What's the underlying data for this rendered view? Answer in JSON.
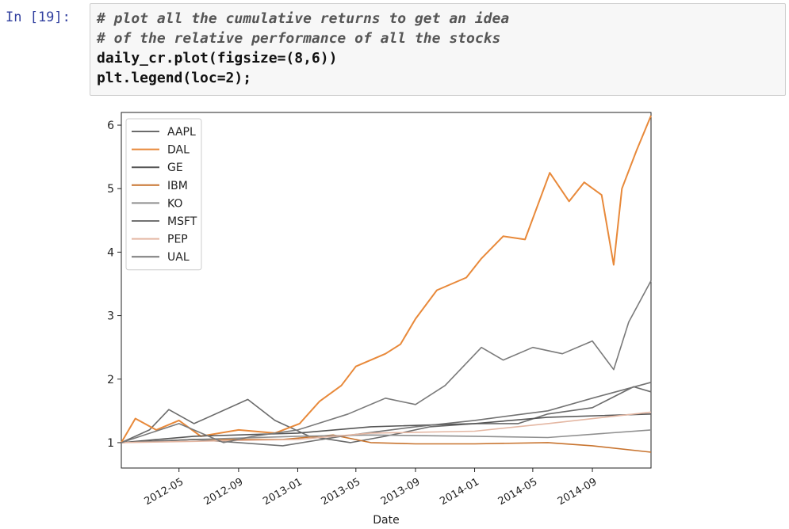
{
  "cell": {
    "prompt": "In [19]:",
    "code_lines": [
      {
        "text": "# plot all the cumulative returns to get an idea",
        "kind": "comment"
      },
      {
        "text": "# of the relative performance of all the stocks",
        "kind": "comment"
      },
      {
        "text": "daily_cr.plot(figsize=(8,6))",
        "kind": "code"
      },
      {
        "text": "plt.legend(loc=2);",
        "kind": "code"
      }
    ]
  },
  "chart_data": {
    "type": "line",
    "title": "",
    "xlabel": "Date",
    "ylabel": "",
    "x_range": [
      "2012-01-03",
      "2014-12-31"
    ],
    "ylim": [
      0.6,
      6.2
    ],
    "x_ticks": [
      "2012-05",
      "2012-09",
      "2013-01",
      "2013-05",
      "2013-09",
      "2014-01",
      "2014-05",
      "2014-09"
    ],
    "y_ticks": [
      1,
      2,
      3,
      4,
      5,
      6
    ],
    "grid": false,
    "legend_position": "top-left",
    "series": [
      {
        "name": "AAPL",
        "color": "#6b6b6b",
        "points": [
          [
            "2012-01-03",
            1.0
          ],
          [
            "2012-03-01",
            1.2
          ],
          [
            "2012-04-10",
            1.52
          ],
          [
            "2012-06-01",
            1.3
          ],
          [
            "2012-09-20",
            1.68
          ],
          [
            "2012-11-15",
            1.35
          ],
          [
            "2013-01-25",
            1.1
          ],
          [
            "2013-04-20",
            1.0
          ],
          [
            "2013-07-01",
            1.1
          ],
          [
            "2013-10-01",
            1.25
          ],
          [
            "2014-01-02",
            1.3
          ],
          [
            "2014-04-01",
            1.3
          ],
          [
            "2014-06-01",
            1.45
          ],
          [
            "2014-09-01",
            1.55
          ],
          [
            "2014-11-25",
            1.88
          ],
          [
            "2014-12-31",
            1.8
          ]
        ]
      },
      {
        "name": "DAL",
        "color": "#e8893a",
        "points": [
          [
            "2012-01-03",
            1.0
          ],
          [
            "2012-02-01",
            1.38
          ],
          [
            "2012-03-15",
            1.2
          ],
          [
            "2012-05-01",
            1.35
          ],
          [
            "2012-06-15",
            1.1
          ],
          [
            "2012-09-01",
            1.2
          ],
          [
            "2012-11-15",
            1.15
          ],
          [
            "2013-01-05",
            1.3
          ],
          [
            "2013-02-15",
            1.65
          ],
          [
            "2013-04-01",
            1.9
          ],
          [
            "2013-05-01",
            2.2
          ],
          [
            "2013-07-01",
            2.4
          ],
          [
            "2013-08-01",
            2.55
          ],
          [
            "2013-09-01",
            2.95
          ],
          [
            "2013-10-15",
            3.4
          ],
          [
            "2013-12-15",
            3.6
          ],
          [
            "2014-01-15",
            3.9
          ],
          [
            "2014-03-01",
            4.25
          ],
          [
            "2014-04-15",
            4.2
          ],
          [
            "2014-06-05",
            5.25
          ],
          [
            "2014-07-15",
            4.8
          ],
          [
            "2014-08-15",
            5.1
          ],
          [
            "2014-09-20",
            4.9
          ],
          [
            "2014-10-15",
            3.8
          ],
          [
            "2014-11-01",
            5.0
          ],
          [
            "2014-12-01",
            5.6
          ],
          [
            "2014-12-31",
            6.15
          ]
        ]
      },
      {
        "name": "GE",
        "color": "#565656",
        "points": [
          [
            "2012-01-03",
            1.0
          ],
          [
            "2012-06-01",
            1.1
          ],
          [
            "2013-01-01",
            1.15
          ],
          [
            "2013-06-01",
            1.25
          ],
          [
            "2014-01-01",
            1.3
          ],
          [
            "2014-06-01",
            1.4
          ],
          [
            "2014-12-31",
            1.45
          ]
        ]
      },
      {
        "name": "IBM",
        "color": "#c8742f",
        "points": [
          [
            "2012-01-03",
            1.0
          ],
          [
            "2012-06-01",
            1.05
          ],
          [
            "2012-12-01",
            1.05
          ],
          [
            "2013-03-15",
            1.12
          ],
          [
            "2013-06-01",
            1.0
          ],
          [
            "2013-09-01",
            0.98
          ],
          [
            "2014-01-01",
            0.98
          ],
          [
            "2014-06-01",
            1.0
          ],
          [
            "2014-09-01",
            0.95
          ],
          [
            "2014-12-31",
            0.85
          ]
        ]
      },
      {
        "name": "KO",
        "color": "#8f8f8f",
        "points": [
          [
            "2012-01-03",
            1.0
          ],
          [
            "2012-06-01",
            1.05
          ],
          [
            "2013-01-01",
            1.1
          ],
          [
            "2013-06-01",
            1.12
          ],
          [
            "2014-01-01",
            1.1
          ],
          [
            "2014-06-01",
            1.08
          ],
          [
            "2014-12-31",
            1.2
          ]
        ]
      },
      {
        "name": "MSFT",
        "color": "#727272",
        "points": [
          [
            "2012-01-03",
            1.0
          ],
          [
            "2012-06-01",
            1.05
          ],
          [
            "2012-12-01",
            0.95
          ],
          [
            "2013-04-01",
            1.1
          ],
          [
            "2013-09-01",
            1.25
          ],
          [
            "2014-01-01",
            1.35
          ],
          [
            "2014-06-01",
            1.5
          ],
          [
            "2014-09-01",
            1.7
          ],
          [
            "2014-12-31",
            1.95
          ]
        ]
      },
      {
        "name": "PEP",
        "color": "#e4b7a3",
        "points": [
          [
            "2012-01-03",
            1.0
          ],
          [
            "2012-06-01",
            1.02
          ],
          [
            "2013-01-01",
            1.05
          ],
          [
            "2013-06-01",
            1.15
          ],
          [
            "2014-01-01",
            1.18
          ],
          [
            "2014-06-01",
            1.3
          ],
          [
            "2014-12-31",
            1.48
          ]
        ]
      },
      {
        "name": "UAL",
        "color": "#7a7a7a",
        "points": [
          [
            "2012-01-03",
            1.0
          ],
          [
            "2012-05-01",
            1.3
          ],
          [
            "2012-08-01",
            1.0
          ],
          [
            "2012-10-01",
            1.1
          ],
          [
            "2013-01-01",
            1.2
          ],
          [
            "2013-04-15",
            1.45
          ],
          [
            "2013-07-01",
            1.7
          ],
          [
            "2013-09-01",
            1.6
          ],
          [
            "2013-11-01",
            1.9
          ],
          [
            "2014-01-15",
            2.5
          ],
          [
            "2014-03-01",
            2.3
          ],
          [
            "2014-05-01",
            2.5
          ],
          [
            "2014-07-01",
            2.4
          ],
          [
            "2014-09-01",
            2.6
          ],
          [
            "2014-10-15",
            2.15
          ],
          [
            "2014-11-15",
            2.9
          ],
          [
            "2014-12-31",
            3.55
          ]
        ]
      }
    ]
  }
}
